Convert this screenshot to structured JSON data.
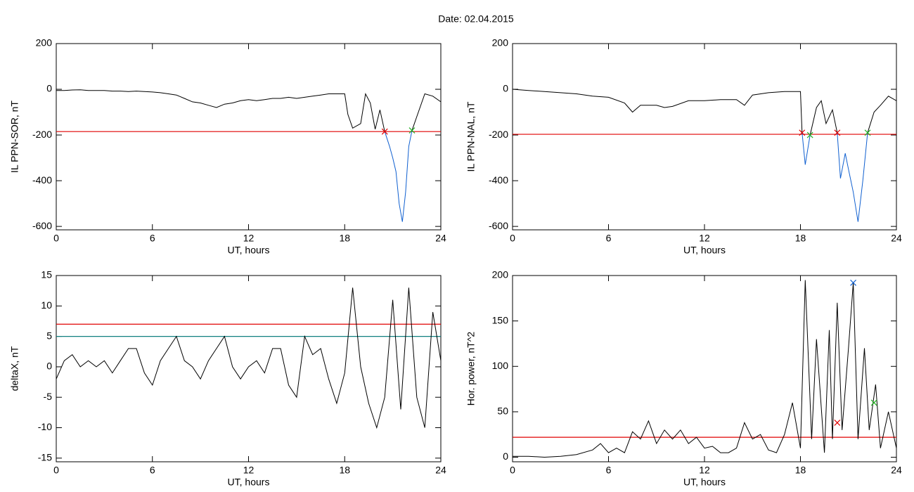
{
  "title": "Date:  02.04.2015",
  "chart_data": [
    {
      "type": "line",
      "ylabel": "IL PPN-SOR, nT",
      "xlabel": "UT, hours",
      "xlim": [
        0,
        24
      ],
      "xticks": [
        0,
        6,
        12,
        18,
        24
      ],
      "ylim": [
        -615,
        200
      ],
      "yticks": [
        200,
        0,
        -200,
        -400,
        -600
      ],
      "series": [
        {
          "color": "#000000",
          "x": [
            0,
            0.5,
            1,
            1.5,
            2,
            2.5,
            3,
            3.5,
            4,
            4.5,
            5,
            5.5,
            6,
            6.5,
            7,
            7.5,
            8,
            8.5,
            9,
            9.5,
            10,
            10.5,
            11,
            11.5,
            12,
            12.5,
            13,
            13.5,
            14,
            14.5,
            15,
            15.5,
            16,
            16.5,
            17,
            17.5,
            18,
            18.2,
            18.5,
            19,
            19.3,
            19.6,
            19.9,
            20.2,
            20.5
          ],
          "values": [
            -5,
            -5,
            -3,
            -2,
            -5,
            -5,
            -5,
            -8,
            -8,
            -10,
            -8,
            -10,
            -12,
            -15,
            -20,
            -25,
            -40,
            -55,
            -60,
            -70,
            -80,
            -65,
            -60,
            -50,
            -45,
            -50,
            -45,
            -40,
            -40,
            -35,
            -40,
            -35,
            -30,
            -25,
            -20,
            -20,
            -20,
            -110,
            -170,
            -150,
            -20,
            -60,
            -175,
            -90,
            -185
          ]
        },
        {
          "color": "#1060d0",
          "x": [
            20.5,
            20.8,
            21,
            21.2,
            21.4,
            21.6,
            21.8,
            22,
            22.2
          ],
          "values": [
            -185,
            -250,
            -300,
            -360,
            -500,
            -580,
            -450,
            -250,
            -180
          ]
        },
        {
          "color": "#000000",
          "x": [
            22.2,
            22.5,
            23,
            23.5,
            24
          ],
          "values": [
            -180,
            -120,
            -20,
            -30,
            -55
          ]
        }
      ],
      "hlines": [
        {
          "value": -185,
          "color": "#e00000"
        }
      ],
      "markers": [
        {
          "x": 20.5,
          "y": -185,
          "color": "#e00000"
        },
        {
          "x": 22.2,
          "y": -180,
          "color": "#20b020"
        }
      ]
    },
    {
      "type": "line",
      "ylabel": "IL PPN-NAL, nT",
      "xlabel": "UT, hours",
      "xlim": [
        0,
        24
      ],
      "xticks": [
        0,
        6,
        12,
        18,
        24
      ],
      "ylim": [
        -615,
        200
      ],
      "yticks": [
        200,
        0,
        -200,
        -400,
        -600
      ],
      "series": [
        {
          "color": "#000000",
          "x": [
            0,
            1,
            2,
            3,
            4,
            5,
            6,
            7,
            7.5,
            8,
            9,
            9.5,
            10,
            11,
            12,
            13,
            14,
            14.5,
            15,
            16,
            17,
            18,
            18.1
          ],
          "values": [
            0,
            -5,
            -10,
            -15,
            -20,
            -30,
            -35,
            -60,
            -100,
            -70,
            -70,
            -80,
            -75,
            -50,
            -50,
            -45,
            -45,
            -70,
            -25,
            -15,
            -10,
            -10,
            -190
          ]
        },
        {
          "color": "#1060d0",
          "x": [
            18.1,
            18.3,
            18.6
          ],
          "values": [
            -190,
            -330,
            -200
          ]
        },
        {
          "color": "#000000",
          "x": [
            18.6,
            19,
            19.3,
            19.6,
            20,
            20.3
          ],
          "values": [
            -200,
            -80,
            -50,
            -150,
            -90,
            -190
          ]
        },
        {
          "color": "#1060d0",
          "x": [
            20.3,
            20.5,
            20.8,
            21,
            21.3,
            21.6,
            21.9,
            22.2
          ],
          "values": [
            -190,
            -390,
            -280,
            -350,
            -450,
            -580,
            -400,
            -190
          ]
        },
        {
          "color": "#000000",
          "x": [
            22.2,
            22.6,
            23,
            23.5,
            24
          ],
          "values": [
            -190,
            -100,
            -70,
            -30,
            -50
          ]
        }
      ],
      "hlines": [
        {
          "value": -197,
          "color": "#e00000"
        }
      ],
      "markers": [
        {
          "x": 18.1,
          "y": -190,
          "color": "#e00000"
        },
        {
          "x": 20.3,
          "y": -190,
          "color": "#e00000"
        },
        {
          "x": 18.6,
          "y": -200,
          "color": "#20b020"
        },
        {
          "x": 22.2,
          "y": -190,
          "color": "#20b020"
        }
      ]
    },
    {
      "type": "line",
      "ylabel": "deltaX, nT",
      "xlabel": "UT, hours",
      "xlim": [
        0,
        24
      ],
      "xticks": [
        0,
        6,
        12,
        18,
        24
      ],
      "ylim": [
        -15.6,
        15
      ],
      "yticks": [
        15,
        10,
        5,
        0,
        -5,
        -10,
        -15
      ],
      "series": [
        {
          "color": "#000000",
          "x": [
            0,
            0.5,
            1,
            1.5,
            2,
            2.5,
            3,
            3.5,
            4,
            4.5,
            5,
            5.5,
            6,
            6.5,
            7,
            7.5,
            8,
            8.5,
            9,
            9.5,
            10,
            10.5,
            11,
            11.5,
            12,
            12.5,
            13,
            13.5,
            14,
            14.5,
            15,
            15.5,
            16,
            16.5,
            17,
            17.5,
            18,
            18.5,
            19,
            19.5,
            20,
            20.5,
            21,
            21.5,
            22,
            22.5,
            23,
            23.5,
            24
          ],
          "values": [
            -2,
            1,
            2,
            0,
            1,
            0,
            1,
            -1,
            1,
            3,
            3,
            -1,
            -3,
            1,
            3,
            5,
            1,
            0,
            -2,
            1,
            3,
            5,
            0,
            -2,
            0,
            1,
            -1,
            3,
            3,
            -3,
            -5,
            5,
            2,
            3,
            -2,
            -6,
            -1,
            13,
            0,
            -6,
            -10,
            -5,
            11,
            -7,
            13,
            -5,
            -10,
            9,
            1
          ]
        }
      ],
      "hlines": [
        {
          "value": 7,
          "color": "#e00000"
        },
        {
          "value": 5,
          "color": "#108080"
        }
      ],
      "markers": []
    },
    {
      "type": "line",
      "ylabel": "Hor. power, nT^2",
      "xlabel": "UT, hours",
      "xlim": [
        0,
        24
      ],
      "xticks": [
        0,
        6,
        12,
        18,
        24
      ],
      "ylim": [
        -5,
        200
      ],
      "yticks": [
        0,
        50,
        100,
        150,
        200
      ],
      "series": [
        {
          "color": "#000000",
          "x": [
            0,
            1,
            2,
            3,
            4,
            5,
            5.5,
            6,
            6.5,
            7,
            7.5,
            8,
            8.5,
            9,
            9.5,
            10,
            10.5,
            11,
            11.5,
            12,
            12.5,
            13,
            13.5,
            14,
            14.5,
            15,
            15.5,
            16,
            16.5,
            17,
            17.5,
            18,
            18.3,
            18.7,
            19,
            19.5,
            19.8,
            20,
            20.3,
            20.6,
            21,
            21.3,
            21.6,
            22,
            22.3,
            22.7,
            23,
            23.5,
            24
          ],
          "values": [
            1,
            1,
            0,
            1,
            3,
            8,
            15,
            5,
            10,
            5,
            28,
            20,
            40,
            15,
            30,
            20,
            30,
            15,
            22,
            10,
            12,
            5,
            5,
            10,
            38,
            20,
            25,
            8,
            5,
            25,
            60,
            10,
            195,
            20,
            130,
            5,
            140,
            20,
            170,
            30,
            120,
            192,
            20,
            120,
            30,
            80,
            10,
            50,
            10
          ]
        }
      ],
      "hlines": [
        {
          "value": 22,
          "color": "#e00000"
        }
      ],
      "markers": [
        {
          "x": 21.3,
          "y": 192,
          "color": "#1060d0"
        },
        {
          "x": 20.3,
          "y": 38,
          "color": "#e00000"
        },
        {
          "x": 22.6,
          "y": 60,
          "color": "#20b020"
        }
      ]
    }
  ]
}
